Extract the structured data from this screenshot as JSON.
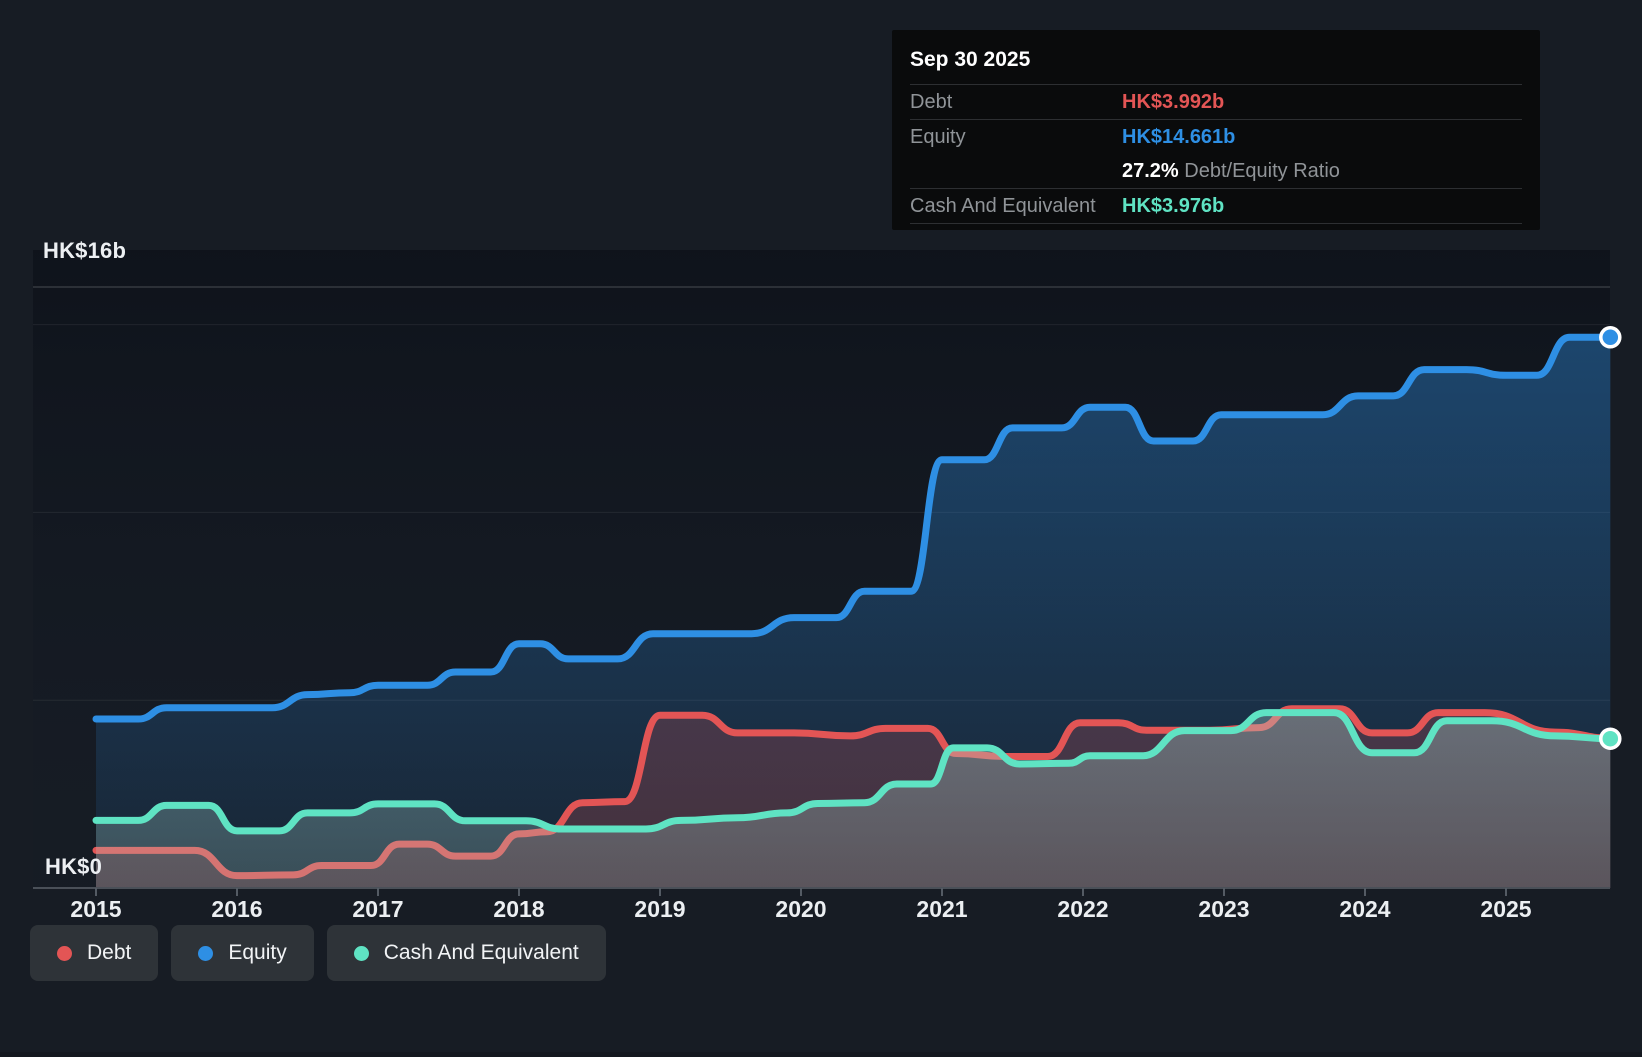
{
  "tooltip": {
    "date": "Sep 30 2025",
    "debt_label": "Debt",
    "debt_value": "HK$3.992b",
    "equity_label": "Equity",
    "equity_value": "HK$14.661b",
    "ratio_value": "27.2%",
    "ratio_label": " Debt/Equity Ratio",
    "cash_label": "Cash And Equivalent",
    "cash_value": "HK$3.976b"
  },
  "y_axis": {
    "top_label": "HK$16b",
    "bottom_label": "HK$0"
  },
  "x_axis": {
    "years": [
      "2015",
      "2016",
      "2017",
      "2018",
      "2019",
      "2020",
      "2021",
      "2022",
      "2023",
      "2024",
      "2025"
    ]
  },
  "legend": [
    {
      "label": "Debt",
      "series": "debt"
    },
    {
      "label": "Equity",
      "series": "equity"
    },
    {
      "label": "Cash And Equivalent",
      "series": "cash"
    }
  ],
  "colors": {
    "bg": "#171c24",
    "plot_bg_top": "rgba(8,12,20,0.55)",
    "plot_bg_bottom": "rgba(20,28,40,0.15)",
    "grid_major": "rgba(255,255,255,0.16)",
    "grid_minor": "rgba(255,255,255,0.07)",
    "axis_line": "#4a5058",
    "tick": "#545b64",
    "text_primary": "#eceff2",
    "text_muted": "#909498",
    "tooltip_bg": "#0a0b0c",
    "tooltip_border": "#2d2f32",
    "legend_bg": "#2e3338",
    "debt": "#e35555",
    "equity": "#2e8fe4",
    "cash": "#5fe3c3"
  },
  "chart_data": {
    "type": "line",
    "units": "HK$ billions",
    "x_range": [
      2015,
      2025.75
    ],
    "ylim": [
      0,
      16
    ],
    "gridlines_b": [
      5,
      10,
      15,
      16
    ],
    "legend_position": "bottom-left",
    "current_point_date": "Sep 30 2025",
    "series": [
      {
        "name": "Equity",
        "key": "equity",
        "current_value_b": 14.661,
        "points": [
          [
            2015.0,
            4.5
          ],
          [
            2015.3,
            4.5
          ],
          [
            2015.5,
            4.8
          ],
          [
            2016.25,
            4.8
          ],
          [
            2016.5,
            5.15
          ],
          [
            2016.8,
            5.2
          ],
          [
            2017.0,
            5.4
          ],
          [
            2017.35,
            5.4
          ],
          [
            2017.55,
            5.75
          ],
          [
            2017.8,
            5.75
          ],
          [
            2018.0,
            6.5
          ],
          [
            2018.15,
            6.5
          ],
          [
            2018.35,
            6.1
          ],
          [
            2018.7,
            6.1
          ],
          [
            2018.95,
            6.77
          ],
          [
            2019.65,
            6.77
          ],
          [
            2019.95,
            7.2
          ],
          [
            2020.25,
            7.2
          ],
          [
            2020.45,
            7.9
          ],
          [
            2020.78,
            7.9
          ],
          [
            2021.0,
            11.4
          ],
          [
            2021.3,
            11.4
          ],
          [
            2021.5,
            12.25
          ],
          [
            2021.85,
            12.25
          ],
          [
            2022.05,
            12.8
          ],
          [
            2022.3,
            12.8
          ],
          [
            2022.5,
            11.9
          ],
          [
            2022.78,
            11.9
          ],
          [
            2022.98,
            12.6
          ],
          [
            2023.7,
            12.6
          ],
          [
            2023.95,
            13.1
          ],
          [
            2024.2,
            13.1
          ],
          [
            2024.42,
            13.8
          ],
          [
            2024.72,
            13.8
          ],
          [
            2025.0,
            13.65
          ],
          [
            2025.22,
            13.65
          ],
          [
            2025.45,
            14.66
          ],
          [
            2025.74,
            14.661
          ]
        ]
      },
      {
        "name": "Debt",
        "key": "debt",
        "current_value_b": 3.992,
        "points": [
          [
            2015.0,
            1.0
          ],
          [
            2015.7,
            1.0
          ],
          [
            2016.0,
            0.33
          ],
          [
            2016.4,
            0.35
          ],
          [
            2016.6,
            0.6
          ],
          [
            2016.95,
            0.6
          ],
          [
            2017.15,
            1.17
          ],
          [
            2017.35,
            1.17
          ],
          [
            2017.55,
            0.85
          ],
          [
            2017.8,
            0.85
          ],
          [
            2018.0,
            1.44
          ],
          [
            2018.2,
            1.5
          ],
          [
            2018.45,
            2.27
          ],
          [
            2018.75,
            2.3
          ],
          [
            2019.0,
            4.6
          ],
          [
            2019.3,
            4.6
          ],
          [
            2019.55,
            4.13
          ],
          [
            2019.95,
            4.13
          ],
          [
            2020.35,
            4.05
          ],
          [
            2020.6,
            4.25
          ],
          [
            2020.9,
            4.25
          ],
          [
            2021.1,
            3.58
          ],
          [
            2021.45,
            3.5
          ],
          [
            2021.75,
            3.5
          ],
          [
            2021.98,
            4.4
          ],
          [
            2022.25,
            4.4
          ],
          [
            2022.45,
            4.2
          ],
          [
            2022.9,
            4.2
          ],
          [
            2023.25,
            4.27
          ],
          [
            2023.48,
            4.77
          ],
          [
            2023.82,
            4.77
          ],
          [
            2024.05,
            4.13
          ],
          [
            2024.3,
            4.13
          ],
          [
            2024.52,
            4.67
          ],
          [
            2024.85,
            4.67
          ],
          [
            2025.35,
            4.15
          ],
          [
            2025.74,
            3.992
          ]
        ]
      },
      {
        "name": "Cash And Equivalent",
        "key": "cash",
        "current_value_b": 3.976,
        "points": [
          [
            2015.0,
            1.8
          ],
          [
            2015.3,
            1.8
          ],
          [
            2015.5,
            2.2
          ],
          [
            2015.8,
            2.2
          ],
          [
            2016.0,
            1.52
          ],
          [
            2016.3,
            1.52
          ],
          [
            2016.5,
            2.0
          ],
          [
            2016.8,
            2.0
          ],
          [
            2017.0,
            2.24
          ],
          [
            2017.4,
            2.24
          ],
          [
            2017.62,
            1.79
          ],
          [
            2018.05,
            1.79
          ],
          [
            2018.3,
            1.57
          ],
          [
            2018.9,
            1.57
          ],
          [
            2019.15,
            1.8
          ],
          [
            2019.55,
            1.87
          ],
          [
            2019.9,
            2.0
          ],
          [
            2020.12,
            2.25
          ],
          [
            2020.45,
            2.27
          ],
          [
            2020.68,
            2.77
          ],
          [
            2020.92,
            2.77
          ],
          [
            2021.08,
            3.73
          ],
          [
            2021.32,
            3.73
          ],
          [
            2021.55,
            3.3
          ],
          [
            2021.9,
            3.32
          ],
          [
            2022.05,
            3.52
          ],
          [
            2022.42,
            3.52
          ],
          [
            2022.72,
            4.19
          ],
          [
            2023.05,
            4.19
          ],
          [
            2023.3,
            4.67
          ],
          [
            2023.78,
            4.67
          ],
          [
            2024.05,
            3.6
          ],
          [
            2024.35,
            3.6
          ],
          [
            2024.58,
            4.45
          ],
          [
            2024.9,
            4.45
          ],
          [
            2025.35,
            4.05
          ],
          [
            2025.74,
            3.976
          ]
        ]
      }
    ]
  }
}
